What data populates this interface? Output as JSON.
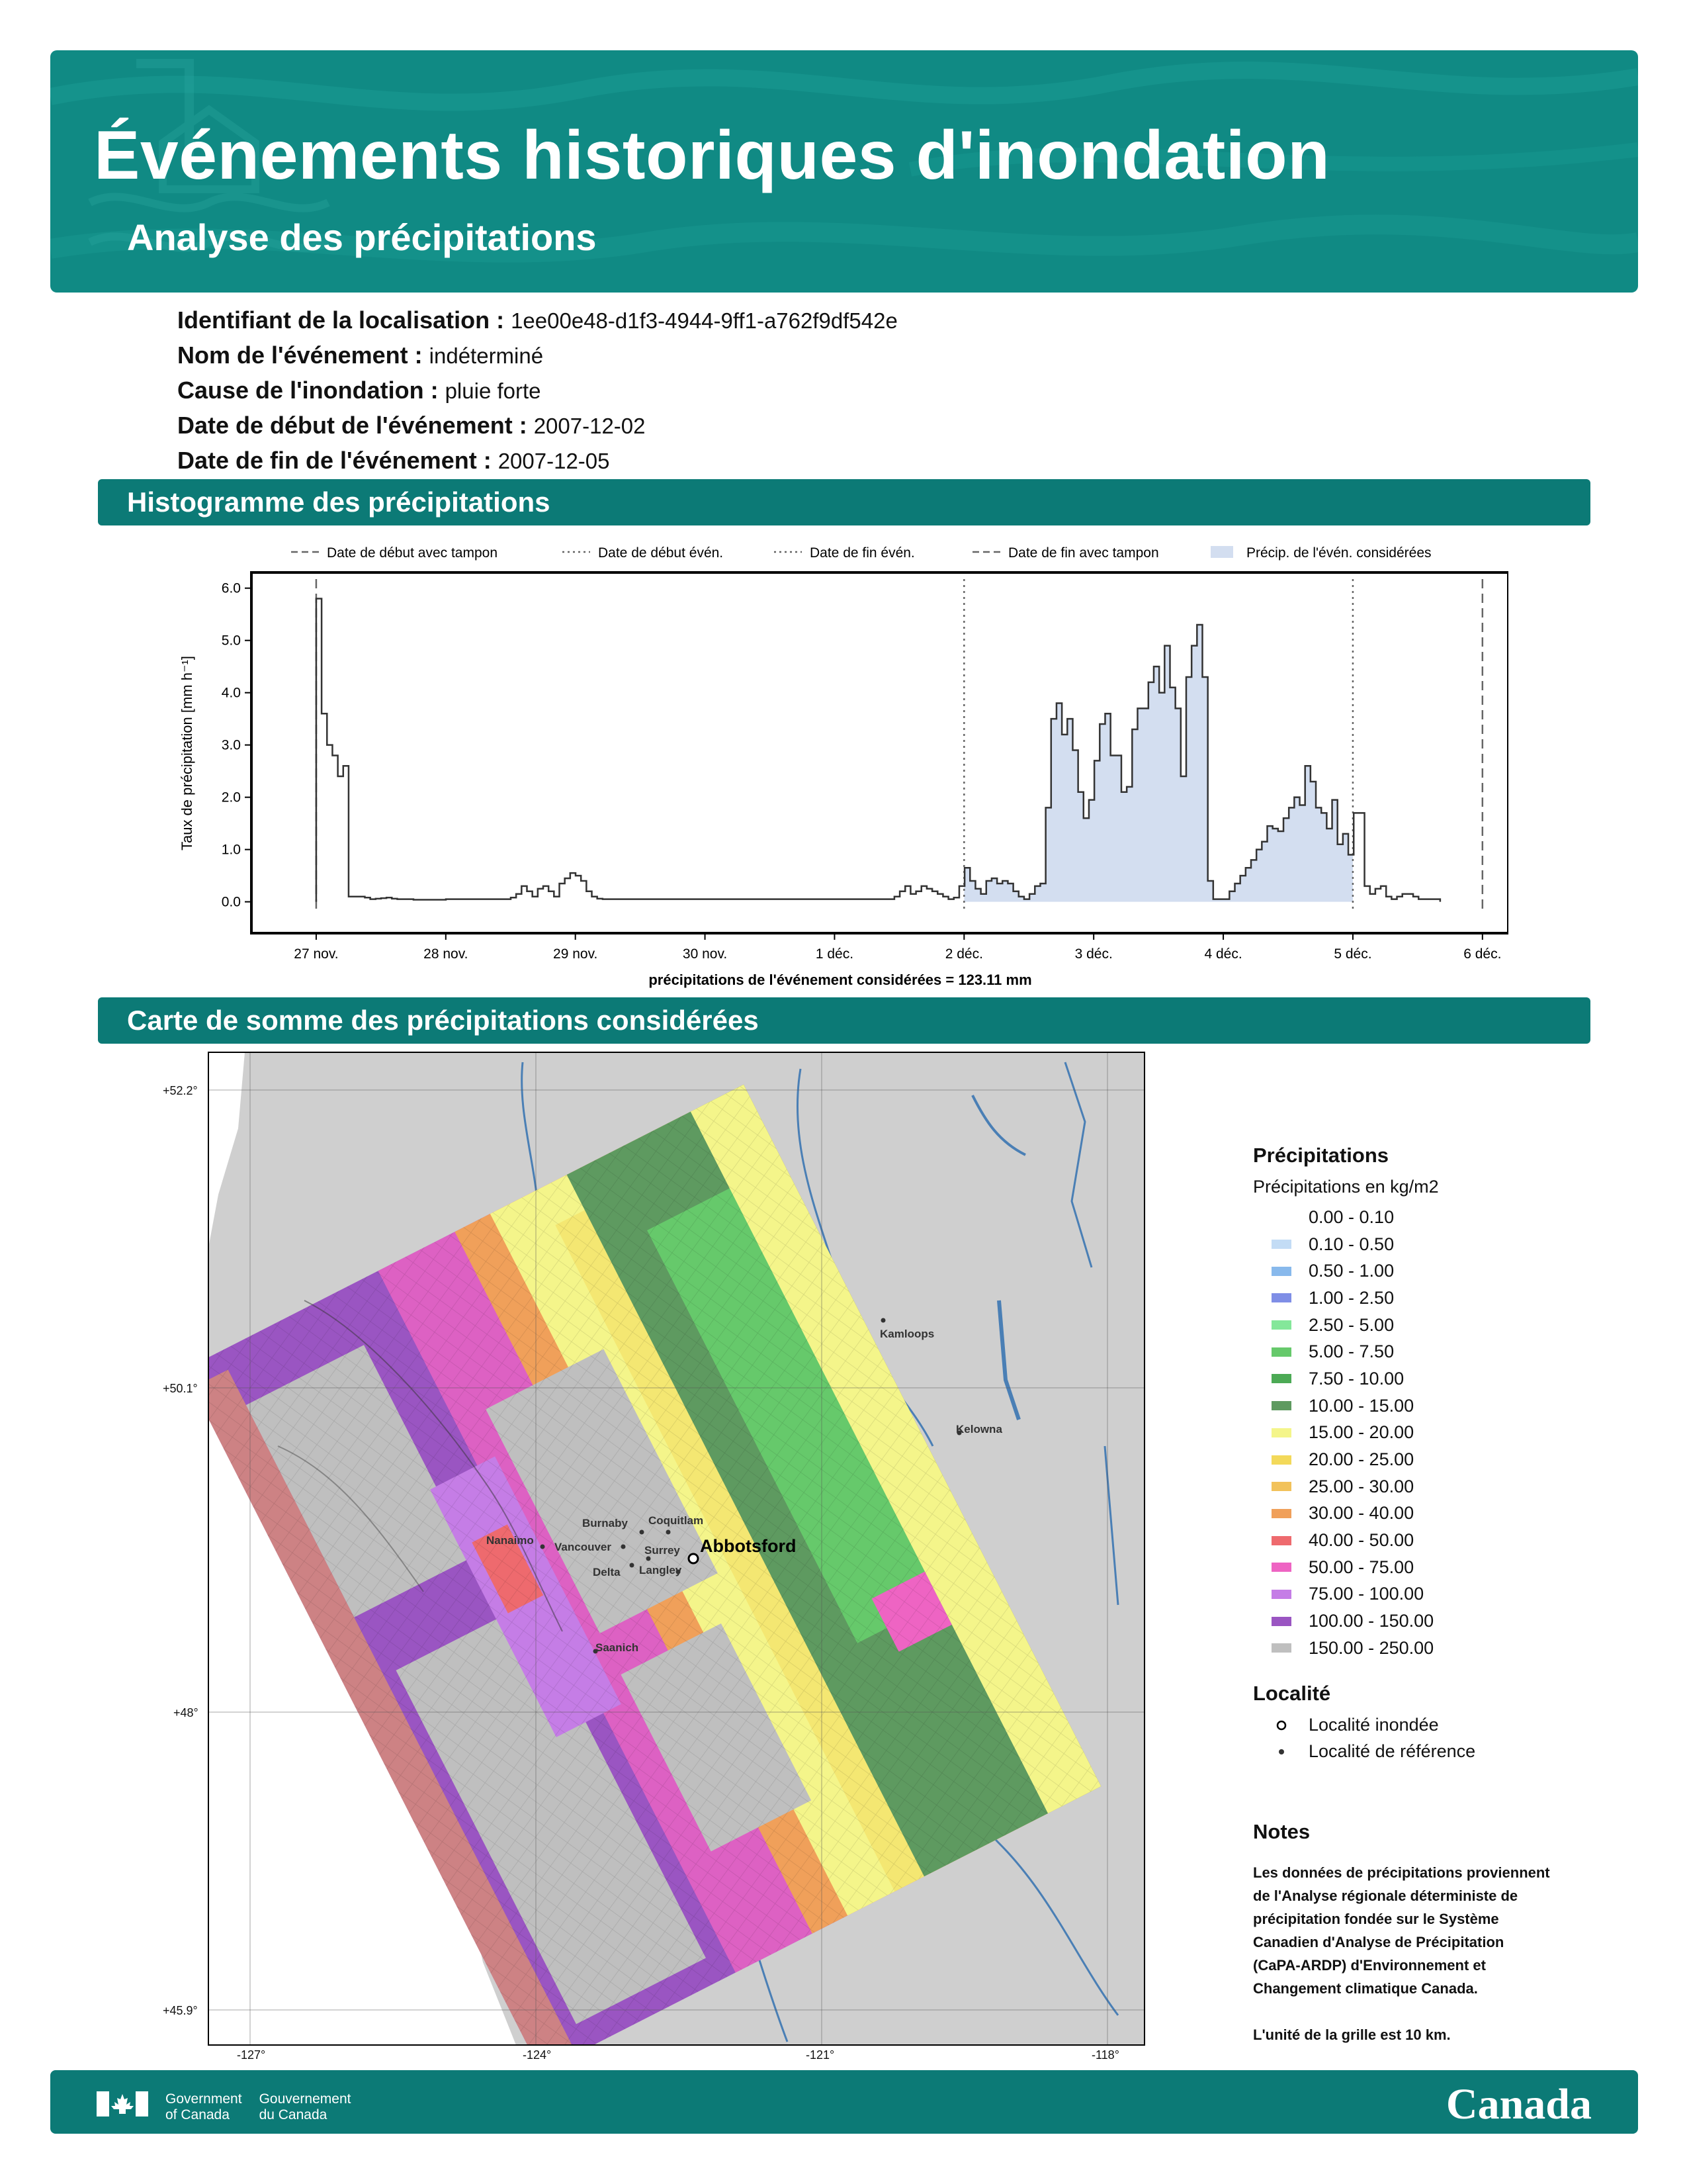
{
  "header": {
    "title": "Événements historiques d'inondation",
    "subtitle": "Analyse des précipitations"
  },
  "meta": [
    {
      "label": "Identifiant de la localisation :",
      "value": "1ee00e48-d1f3-4944-9ff1-a762f9df542e"
    },
    {
      "label": "Nom de l'événement :",
      "value": "indéterminé"
    },
    {
      "label": "Cause de l'inondation :",
      "value": "pluie forte"
    },
    {
      "label": "Date de début de l'événement :",
      "value": "2007-12-02"
    },
    {
      "label": "Date de fin de l'événement :",
      "value": "2007-12-05"
    }
  ],
  "sections": {
    "histogram": "Histogramme des précipitations",
    "map": "Carte de somme des précipitations considérées"
  },
  "chart_data": {
    "type": "area",
    "ylabel": "Taux de précipitation [mm h⁻¹]",
    "xlabel": "précipitations de l'événement considérées = 123.11 mm",
    "x_ticks": [
      "27 nov.",
      "28 nov.",
      "29 nov.",
      "30 nov.",
      "1 déc.",
      "2 déc.",
      "3 déc.",
      "4 déc.",
      "5 déc.",
      "6 déc."
    ],
    "y_ticks": [
      "0.0",
      "1.0",
      "2.0",
      "3.0",
      "4.0",
      "5.0",
      "6.0"
    ],
    "ylim": [
      -0.6,
      6.3
    ],
    "xlim": [
      -0.5,
      9.2
    ],
    "legend": [
      {
        "name": "Date de début avec tampon",
        "style": "dashed"
      },
      {
        "name": "Date de début évén.",
        "style": "dotted"
      },
      {
        "name": "Date de fin évén.",
        "style": "dotted"
      },
      {
        "name": "Date de fin avec tampon",
        "style": "dashed"
      },
      {
        "name": "Précip. de l'évén. considérées",
        "style": "fill"
      }
    ],
    "vlines": [
      {
        "x": 0.0,
        "style": "dashed"
      },
      {
        "x": 5.0,
        "style": "dotted"
      },
      {
        "x": 8.0,
        "style": "dotted"
      },
      {
        "x": 9.0,
        "style": "dashed"
      }
    ],
    "event_range": [
      5.0,
      8.0
    ],
    "series": [
      {
        "x_start": 0.0,
        "step": 0.0417,
        "values": [
          5.8,
          3.6,
          3.0,
          2.8,
          2.4,
          2.6,
          0.1,
          0.1,
          0.1,
          0.08,
          0.05,
          0.06,
          0.07,
          0.08,
          0.06,
          0.05,
          0.05,
          0.05,
          0.04,
          0.04,
          0.04,
          0.04,
          0.04,
          0.04,
          0.05,
          0.05,
          0.05,
          0.05,
          0.05,
          0.05,
          0.05,
          0.05,
          0.05,
          0.05,
          0.05,
          0.05,
          0.08,
          0.15,
          0.3,
          0.2,
          0.1,
          0.25,
          0.3,
          0.2,
          0.1,
          0.35,
          0.45,
          0.55,
          0.5,
          0.4,
          0.2,
          0.1,
          0.06,
          0.05,
          0.05,
          0.05,
          0.05,
          0.05,
          0.05,
          0.05,
          0.05,
          0.05,
          0.05,
          0.05,
          0.05,
          0.05,
          0.05,
          0.05,
          0.05,
          0.05,
          0.05,
          0.05,
          0.05,
          0.05,
          0.05,
          0.05,
          0.05,
          0.05,
          0.05,
          0.05,
          0.05,
          0.05,
          0.05,
          0.05,
          0.05,
          0.05,
          0.05,
          0.05,
          0.05,
          0.05,
          0.05,
          0.05,
          0.05,
          0.05,
          0.05,
          0.05,
          0.05,
          0.05,
          0.05,
          0.05,
          0.05,
          0.05,
          0.05,
          0.05,
          0.05,
          0.05,
          0.05,
          0.1,
          0.2,
          0.3,
          0.15,
          0.2,
          0.3,
          0.25,
          0.2,
          0.15,
          0.1,
          0.05,
          0.08,
          0.3,
          0.65,
          0.4,
          0.25,
          0.15,
          0.4,
          0.45,
          0.35,
          0.4,
          0.35,
          0.2,
          0.1,
          0.05,
          0.15,
          0.3,
          0.35,
          1.8,
          3.5,
          3.8,
          3.2,
          3.5,
          2.9,
          2.1,
          1.6,
          1.95,
          2.7,
          3.4,
          3.6,
          2.8,
          2.8,
          2.1,
          2.2,
          3.3,
          3.7,
          3.7,
          4.2,
          4.5,
          4.0,
          4.9,
          4.1,
          3.7,
          2.4,
          4.3,
          4.9,
          5.3,
          4.3,
          0.4,
          0.05,
          0.05,
          0.05,
          0.2,
          0.35,
          0.5,
          0.65,
          0.8,
          1.0,
          1.15,
          1.45,
          1.4,
          1.35,
          1.6,
          1.8,
          2.0,
          1.85,
          2.6,
          2.3,
          1.8,
          1.7,
          1.4,
          1.95,
          1.1,
          1.3,
          0.9,
          1.7,
          1.7,
          0.3,
          0.15,
          0.25,
          0.3,
          0.1,
          0.05,
          0.1,
          0.15,
          0.15,
          0.1,
          0.05,
          0.05,
          0.05,
          0.05
        ]
      }
    ]
  },
  "map": {
    "lat_labels": [
      "+52.2°",
      "+50.1°",
      "+48°",
      "+45.9°"
    ],
    "lon_labels": [
      "-127°",
      "-124°",
      "-121°",
      "-118°"
    ],
    "cities": [
      "Kamloops",
      "Kelowna",
      "Burnaby",
      "Coquitlam",
      "Nanaimo",
      "Vancouver",
      "Surrey",
      "Delta",
      "Langley",
      "Saanich"
    ],
    "flooded_city": "Abbotsford"
  },
  "legend": {
    "title": "Précipitations",
    "subtitle": "Précipitations en kg/m2",
    "bins": [
      {
        "label": "0.00 - 0.10",
        "color": "#ffffff"
      },
      {
        "label": "0.10 - 0.50",
        "color": "#c3dcf5"
      },
      {
        "label": "0.50 - 1.00",
        "color": "#88b9ec"
      },
      {
        "label": "1.00 - 2.50",
        "color": "#7f8ee6"
      },
      {
        "label": "2.50 - 5.00",
        "color": "#84e79a"
      },
      {
        "label": "5.00 - 7.50",
        "color": "#66c96b"
      },
      {
        "label": "7.50 - 10.00",
        "color": "#4caa55"
      },
      {
        "label": "10.00 - 15.00",
        "color": "#5e9a60"
      },
      {
        "label": "15.00 - 20.00",
        "color": "#f4f58a"
      },
      {
        "label": "20.00 - 25.00",
        "color": "#f3d95a"
      },
      {
        "label": "25.00 - 30.00",
        "color": "#f2c25b"
      },
      {
        "label": "30.00 - 40.00",
        "color": "#f0a05a"
      },
      {
        "label": "40.00 - 50.00",
        "color": "#ee6a6e"
      },
      {
        "label": "50.00 - 75.00",
        "color": "#ee64c3"
      },
      {
        "label": "75.00 - 100.00",
        "color": "#c57de6"
      },
      {
        "label": "100.00 - 150.00",
        "color": "#9a55c2"
      },
      {
        "label": "150.00 - 250.00",
        "color": "#bfbfbf"
      }
    ],
    "locality_title": "Localité",
    "locality_items": [
      "Localité inondée",
      "Localité de référence"
    ]
  },
  "notes": {
    "title": "Notes",
    "lines": [
      "Les données de précipitations proviennent",
      "de l'Analyse régionale déterministe de",
      "précipitation fondée sur le Système",
      "Canadien d'Analyse de Précipitation",
      "(CaPA-ARDP) d'Environnement et",
      "Changement climatique Canada."
    ],
    "grid_unit": "L'unité de la grille est 10 km."
  },
  "footer": {
    "gov_en_1": "Government",
    "gov_en_2": "of Canada",
    "gov_fr_1": "Gouvernement",
    "gov_fr_2": "du Canada",
    "wordmark": "Canada"
  }
}
